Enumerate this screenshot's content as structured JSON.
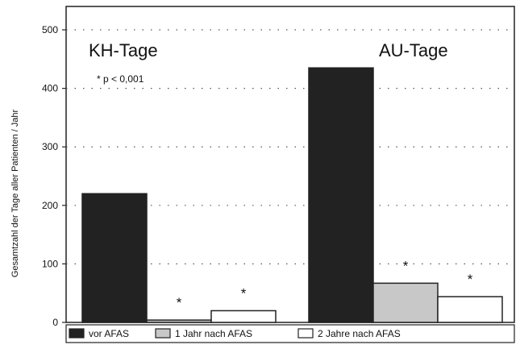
{
  "chart_data": {
    "type": "bar",
    "ylabel": "Gesamtzahl der Tage aller Patienten / Jahr",
    "ylim": [
      0,
      540
    ],
    "yticks": [
      0,
      100,
      200,
      300,
      400,
      500
    ],
    "grid": true,
    "legend_position": "bottom",
    "groups": [
      {
        "label": "KH-Tage",
        "values": [
          220,
          4,
          20
        ],
        "significance": [
          "",
          "*",
          "*"
        ]
      },
      {
        "label": "AU-Tage",
        "values": [
          435,
          67,
          44
        ],
        "significance": [
          "",
          "*",
          "*"
        ]
      }
    ],
    "series": [
      {
        "name": "vor AFAS",
        "color": "#222222"
      },
      {
        "name": "1 Jahr nach AFAS",
        "color": "#c8c8c8"
      },
      {
        "name": "2 Jahre nach AFAS",
        "color": "#ffffff"
      }
    ],
    "annotation": "* p < 0,001"
  }
}
